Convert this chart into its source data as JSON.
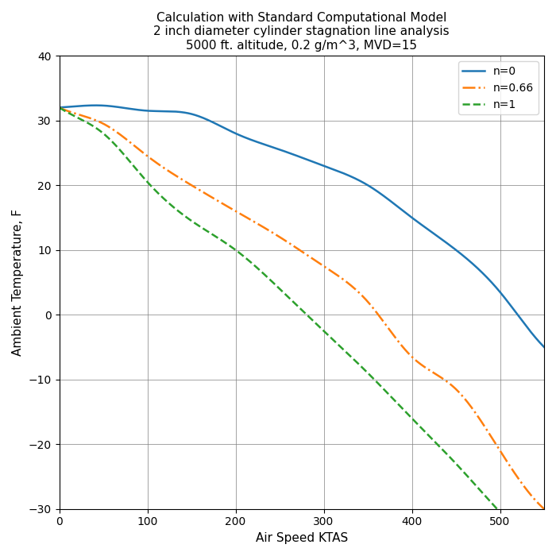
{
  "title": "Calculation with Standard Computational Model\n2 inch diameter cylinder stagnation line analysis\n5000 ft. altitude, 0.2 g/m^3, MVD=15",
  "xlabel": "Air Speed KTAS",
  "ylabel": "Ambient Temperature, F",
  "xlim": [
    0,
    550
  ],
  "ylim": [
    -30,
    40
  ],
  "xticks": [
    0,
    100,
    200,
    300,
    400,
    500
  ],
  "yticks": [
    -30,
    -20,
    -10,
    0,
    10,
    20,
    30,
    40
  ],
  "n0": {
    "label": "n=0",
    "color": "#1f77b4",
    "linestyle": "-",
    "linewidth": 1.8,
    "V_pts": [
      0,
      20,
      50,
      100,
      150,
      200,
      250,
      300,
      350,
      400,
      450,
      500,
      540,
      550
    ],
    "T_pts": [
      32,
      32.2,
      32.3,
      31.5,
      31.0,
      28.0,
      25.5,
      23.0,
      20.0,
      15.0,
      10.0,
      3.5,
      -3.5,
      -5.0
    ]
  },
  "n066": {
    "label": "n=0.66",
    "color": "#ff7f0e",
    "linestyle": "-.",
    "linewidth": 1.8,
    "V_pts": [
      0,
      20,
      50,
      100,
      150,
      200,
      250,
      300,
      350,
      400,
      450,
      500,
      530,
      550
    ],
    "T_pts": [
      32,
      31.0,
      29.5,
      24.5,
      20.0,
      16.0,
      12.0,
      7.5,
      2.0,
      -6.5,
      -11.5,
      -21.0,
      -27.0,
      -30.0
    ]
  },
  "n1": {
    "label": "n=1",
    "color": "#2ca02c",
    "linestyle": "--",
    "linewidth": 1.8,
    "V_pts": [
      0,
      20,
      50,
      100,
      150,
      200,
      250,
      300,
      350,
      400,
      450,
      480,
      500
    ],
    "T_pts": [
      32,
      30.5,
      28.0,
      20.5,
      14.5,
      10.0,
      4.0,
      -2.5,
      -9.0,
      -16.0,
      -23.0,
      -27.5,
      -30.5
    ]
  },
  "legend_loc": "upper right",
  "grid": true,
  "figsize": [
    7.0,
    7.0
  ],
  "dpi": 100
}
